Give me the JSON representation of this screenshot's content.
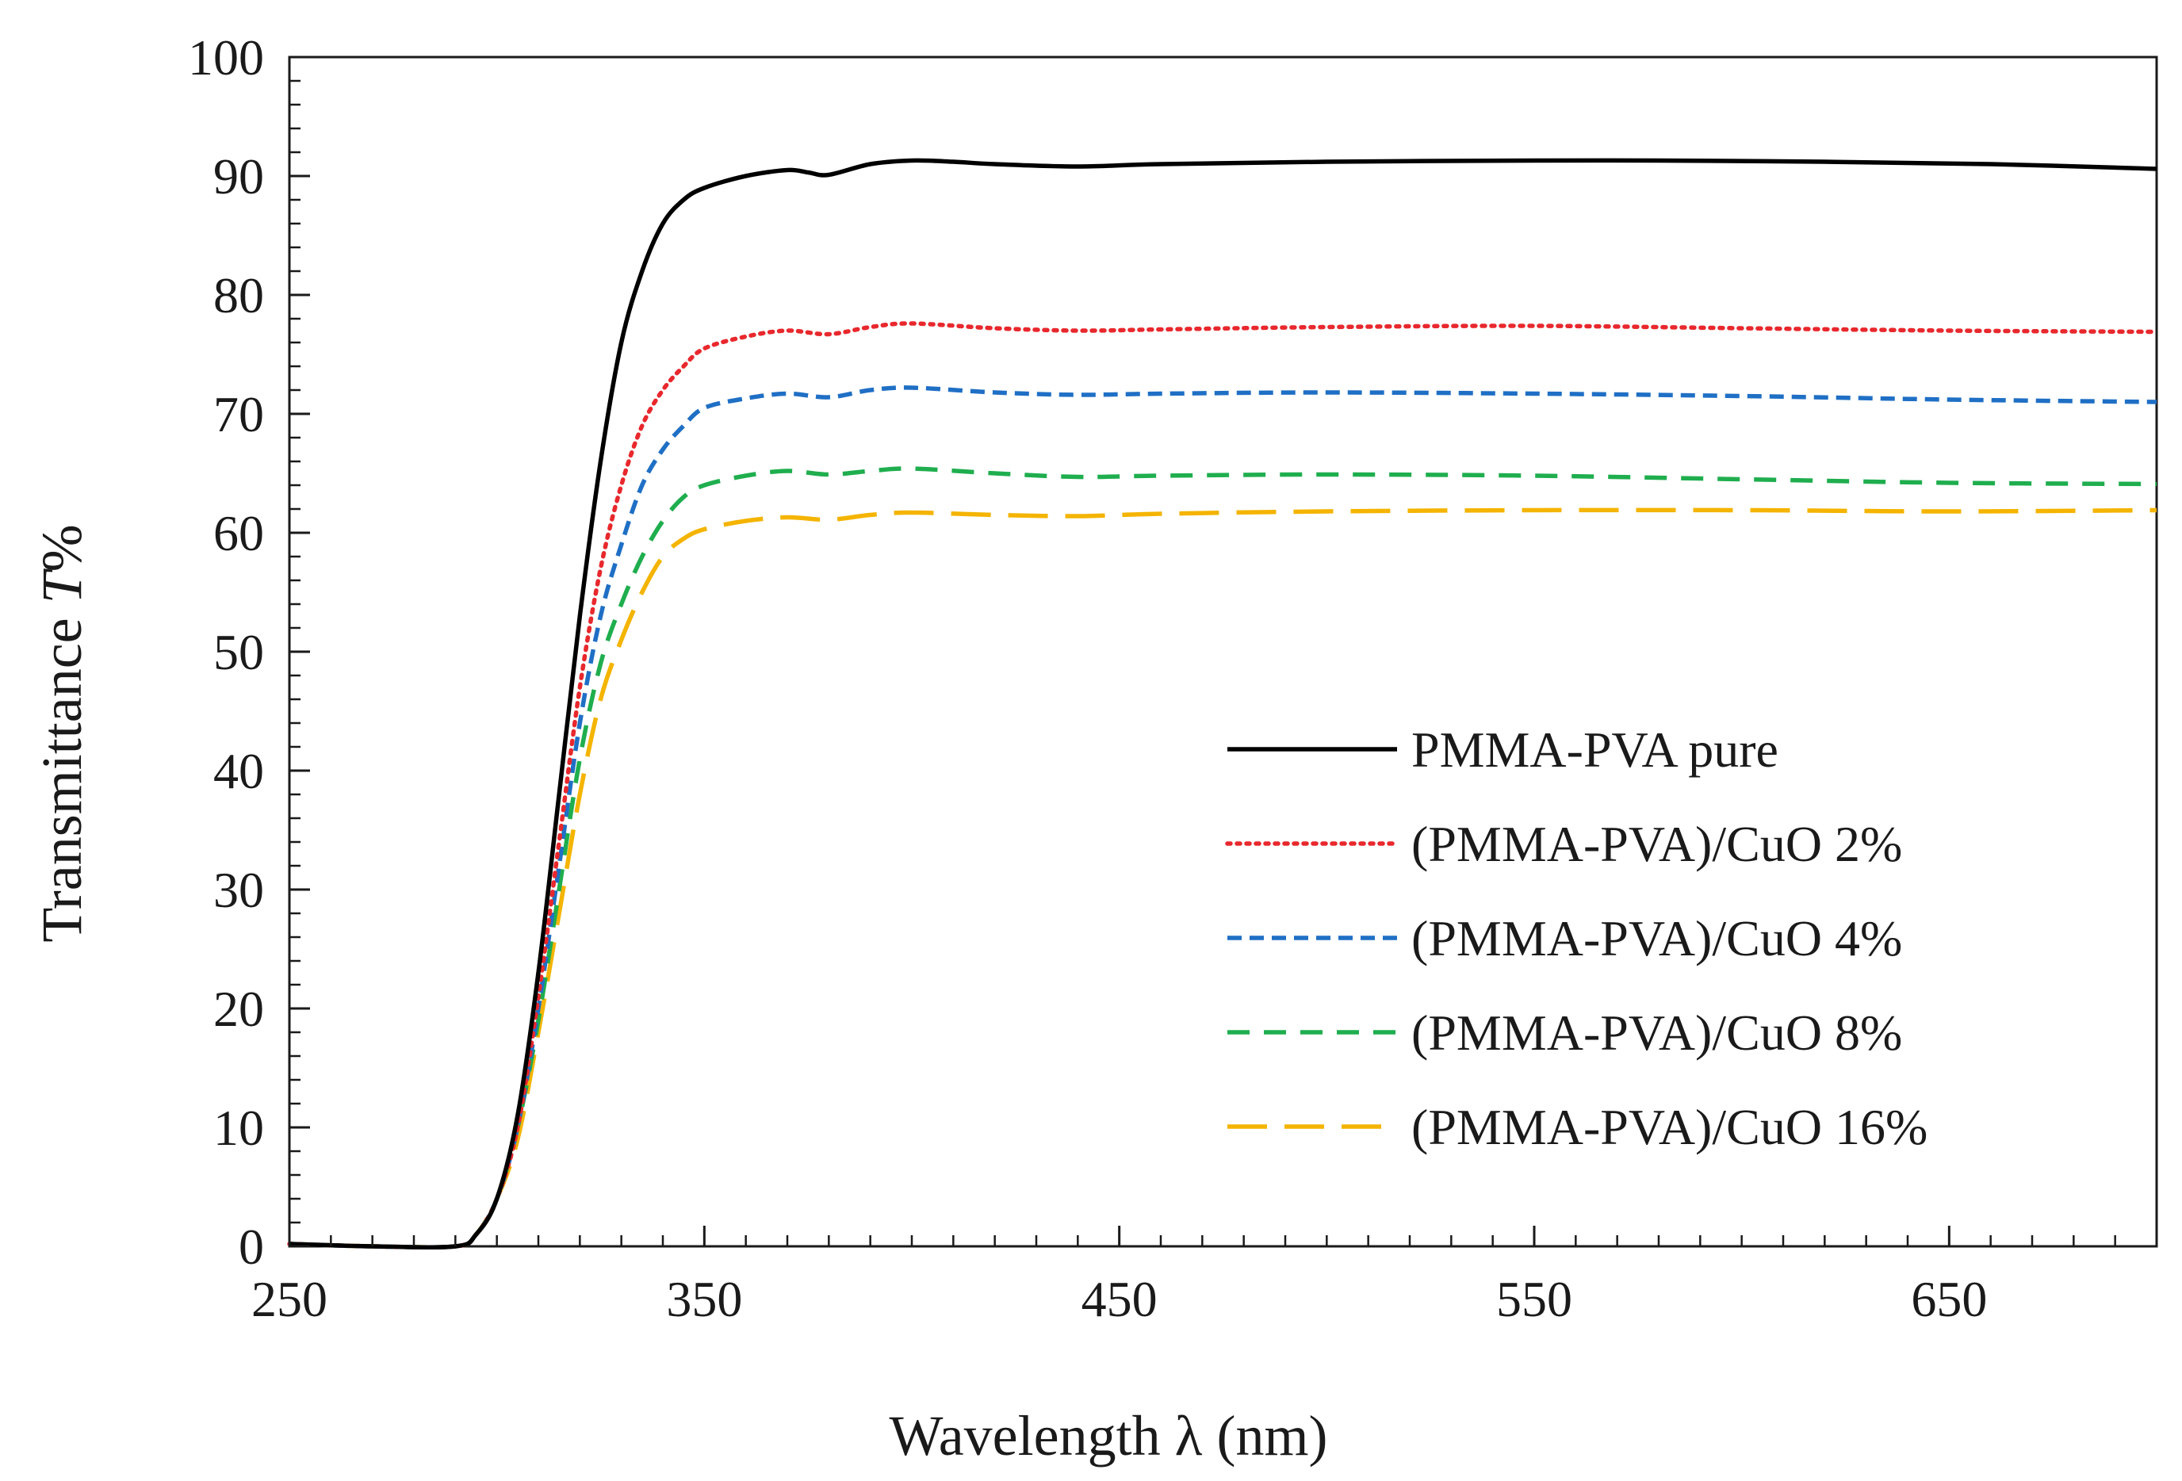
{
  "chart_data": {
    "type": "line",
    "xlabel": "Wavelength λ (nm)",
    "ylabel_main": "Transmittance ",
    "ylabel_italic": "T",
    "ylabel_suffix": "%",
    "xlim": [
      250,
      700
    ],
    "ylim": [
      0,
      100
    ],
    "xticks": [
      250,
      350,
      450,
      550,
      650
    ],
    "yticks": [
      0,
      10,
      20,
      30,
      40,
      50,
      60,
      70,
      80,
      90,
      100
    ],
    "x_minor_step": 10,
    "y_minor_step": 2,
    "legend_position": "lower-right",
    "series": [
      {
        "name": "PMMA-PVA pure",
        "color": "#000000",
        "dash": "solid",
        "points": [
          [
            250,
            0.2
          ],
          [
            270,
            0
          ],
          [
            290,
            0
          ],
          [
            295,
            1
          ],
          [
            300,
            4
          ],
          [
            305,
            11
          ],
          [
            310,
            23
          ],
          [
            315,
            38
          ],
          [
            320,
            53
          ],
          [
            325,
            66
          ],
          [
            330,
            76
          ],
          [
            335,
            82
          ],
          [
            340,
            86
          ],
          [
            345,
            88
          ],
          [
            350,
            89
          ],
          [
            360,
            90
          ],
          [
            370,
            90.5
          ],
          [
            375,
            90.3
          ],
          [
            380,
            90.1
          ],
          [
            390,
            91
          ],
          [
            400,
            91.3
          ],
          [
            410,
            91.2
          ],
          [
            420,
            91
          ],
          [
            440,
            90.8
          ],
          [
            460,
            91
          ],
          [
            500,
            91.2
          ],
          [
            550,
            91.3
          ],
          [
            580,
            91.3
          ],
          [
            620,
            91.2
          ],
          [
            660,
            91
          ],
          [
            700,
            90.6
          ]
        ]
      },
      {
        "name": "(PMMA-PVA)/CuO 2%",
        "color": "#e8282d",
        "dash": "dotted",
        "points": [
          [
            250,
            0.2
          ],
          [
            270,
            0
          ],
          [
            290,
            0
          ],
          [
            295,
            1
          ],
          [
            300,
            4
          ],
          [
            305,
            10
          ],
          [
            310,
            21
          ],
          [
            315,
            34
          ],
          [
            320,
            47
          ],
          [
            325,
            57
          ],
          [
            330,
            64
          ],
          [
            335,
            69
          ],
          [
            340,
            72
          ],
          [
            345,
            74
          ],
          [
            350,
            75.5
          ],
          [
            360,
            76.5
          ],
          [
            370,
            77
          ],
          [
            380,
            76.7
          ],
          [
            390,
            77.3
          ],
          [
            400,
            77.6
          ],
          [
            420,
            77.2
          ],
          [
            440,
            77
          ],
          [
            460,
            77.1
          ],
          [
            500,
            77.3
          ],
          [
            550,
            77.4
          ],
          [
            600,
            77.2
          ],
          [
            650,
            77
          ],
          [
            700,
            76.9
          ]
        ]
      },
      {
        "name": "(PMMA-PVA)/CuO 4%",
        "color": "#1f6fc5",
        "dash": "dashed",
        "points": [
          [
            250,
            0.2
          ],
          [
            270,
            0
          ],
          [
            290,
            0
          ],
          [
            295,
            1
          ],
          [
            300,
            4
          ],
          [
            305,
            10
          ],
          [
            310,
            20
          ],
          [
            315,
            32
          ],
          [
            320,
            44
          ],
          [
            325,
            53
          ],
          [
            330,
            59
          ],
          [
            335,
            64
          ],
          [
            340,
            67
          ],
          [
            345,
            69
          ],
          [
            350,
            70.5
          ],
          [
            360,
            71.3
          ],
          [
            370,
            71.7
          ],
          [
            380,
            71.4
          ],
          [
            390,
            72
          ],
          [
            400,
            72.2
          ],
          [
            420,
            71.8
          ],
          [
            440,
            71.6
          ],
          [
            460,
            71.7
          ],
          [
            500,
            71.8
          ],
          [
            550,
            71.7
          ],
          [
            600,
            71.5
          ],
          [
            650,
            71.2
          ],
          [
            700,
            71
          ]
        ]
      },
      {
        "name": "(PMMA-PVA)/CuO 8%",
        "color": "#1fae4e",
        "dash": "dash-medium",
        "points": [
          [
            250,
            0.2
          ],
          [
            270,
            0
          ],
          [
            290,
            0
          ],
          [
            295,
            1
          ],
          [
            300,
            4
          ],
          [
            305,
            10
          ],
          [
            310,
            19
          ],
          [
            315,
            30
          ],
          [
            320,
            41
          ],
          [
            325,
            49
          ],
          [
            330,
            54
          ],
          [
            335,
            58
          ],
          [
            340,
            61
          ],
          [
            345,
            63
          ],
          [
            350,
            64
          ],
          [
            360,
            64.8
          ],
          [
            370,
            65.2
          ],
          [
            380,
            64.9
          ],
          [
            390,
            65.2
          ],
          [
            400,
            65.4
          ],
          [
            420,
            65
          ],
          [
            440,
            64.7
          ],
          [
            460,
            64.8
          ],
          [
            500,
            64.9
          ],
          [
            550,
            64.8
          ],
          [
            600,
            64.5
          ],
          [
            650,
            64.2
          ],
          [
            700,
            64.1
          ]
        ]
      },
      {
        "name": "(PMMA-PVA)/CuO 16%",
        "color": "#f4b400",
        "dash": "long-dash",
        "points": [
          [
            250,
            0.2
          ],
          [
            270,
            0
          ],
          [
            290,
            0
          ],
          [
            295,
            1
          ],
          [
            300,
            4
          ],
          [
            305,
            9
          ],
          [
            310,
            18
          ],
          [
            315,
            28
          ],
          [
            320,
            38
          ],
          [
            325,
            46
          ],
          [
            330,
            51
          ],
          [
            335,
            55
          ],
          [
            340,
            58
          ],
          [
            345,
            59.5
          ],
          [
            350,
            60.3
          ],
          [
            360,
            61
          ],
          [
            370,
            61.3
          ],
          [
            380,
            61.1
          ],
          [
            390,
            61.5
          ],
          [
            400,
            61.7
          ],
          [
            420,
            61.5
          ],
          [
            440,
            61.4
          ],
          [
            460,
            61.6
          ],
          [
            500,
            61.8
          ],
          [
            550,
            61.9
          ],
          [
            600,
            61.9
          ],
          [
            650,
            61.8
          ],
          [
            700,
            61.9
          ]
        ]
      }
    ]
  }
}
